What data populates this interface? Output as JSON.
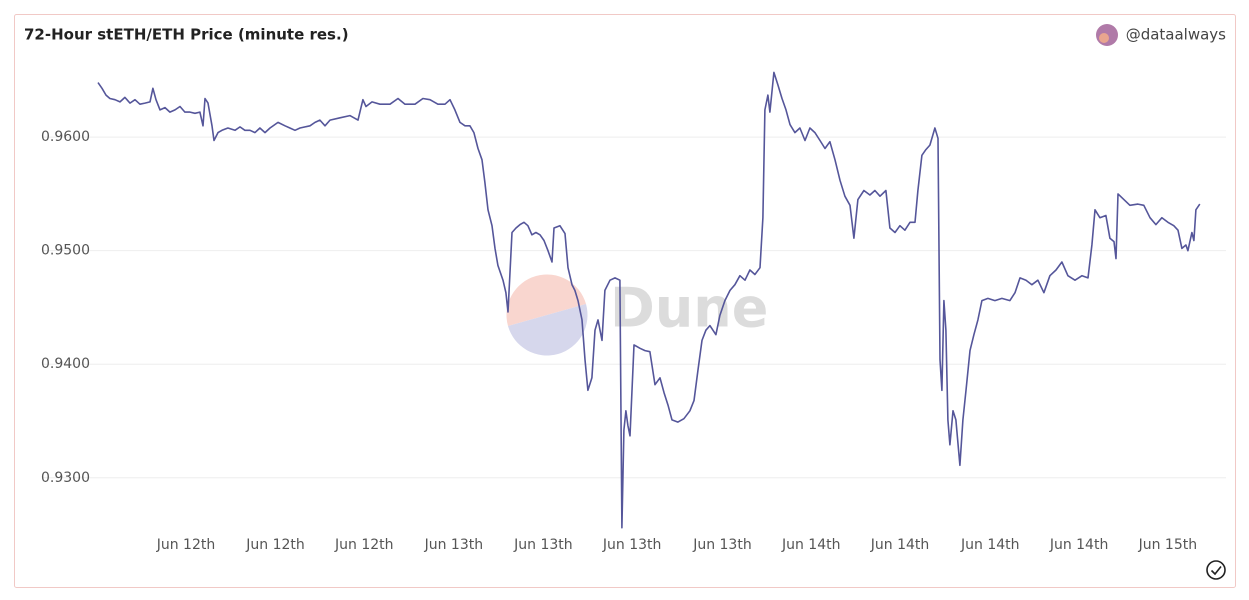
{
  "chart_data": {
    "type": "line",
    "title": "72-Hour stETH/ETH Price (minute res.)",
    "author": "@dataalways",
    "watermark": "Dune",
    "color": "#55569a",
    "grid": true,
    "xlim": [
      0,
      72
    ],
    "ylim": [
      0.9254,
      0.966
    ],
    "yticks": [
      {
        "value": 0.93,
        "label": "0.9300"
      },
      {
        "value": 0.94,
        "label": "0.9400"
      },
      {
        "value": 0.95,
        "label": "0.9500"
      },
      {
        "value": 0.96,
        "label": "0.9600"
      }
    ],
    "xticks": [
      {
        "value": 5.75,
        "label": "Jun 12th"
      },
      {
        "value": 11.6,
        "label": "Jun 12th"
      },
      {
        "value": 17.4,
        "label": "Jun 12th"
      },
      {
        "value": 23.25,
        "label": "Jun 13th"
      },
      {
        "value": 29.1,
        "label": "Jun 13th"
      },
      {
        "value": 34.9,
        "label": "Jun 13th"
      },
      {
        "value": 40.8,
        "label": "Jun 13th"
      },
      {
        "value": 46.6,
        "label": "Jun 14th"
      },
      {
        "value": 52.4,
        "label": "Jun 14th"
      },
      {
        "value": 58.3,
        "label": "Jun 14th"
      },
      {
        "value": 64.1,
        "label": "Jun 14th"
      },
      {
        "value": 69.9,
        "label": "Jun 15th"
      }
    ],
    "x": [
      0,
      0.26,
      0.52,
      0.78,
      1.11,
      1.44,
      1.76,
      2.09,
      2.42,
      2.74,
      3.07,
      3.4,
      3.59,
      3.79,
      4.05,
      4.38,
      4.7,
      5.03,
      5.36,
      5.68,
      6.01,
      6.34,
      6.66,
      6.86,
      6.99,
      7.19,
      7.45,
      7.58,
      7.84,
      8.1,
      8.49,
      8.95,
      9.28,
      9.6,
      9.93,
      10.26,
      10.58,
      10.91,
      11.24,
      11.76,
      12.22,
      12.54,
      12.87,
      13.2,
      13.85,
      14.18,
      14.5,
      14.83,
      15.16,
      15.81,
      16.46,
      16.99,
      17.31,
      17.51,
      17.9,
      18.42,
      19.08,
      19.6,
      20.06,
      20.71,
      21.23,
      21.69,
      22.21,
      22.67,
      23.0,
      23.32,
      23.65,
      23.98,
      24.3,
      24.56,
      24.83,
      25.09,
      25.28,
      25.48,
      25.74,
      25.94,
      26.13,
      26.46,
      26.65,
      26.79,
      27.05,
      27.31,
      27.57,
      27.83,
      28.09,
      28.35,
      28.61,
      28.88,
      29.14,
      29.4,
      29.66,
      29.79,
      30.18,
      30.51,
      30.71,
      30.97,
      31.16,
      31.36,
      31.62,
      31.82,
      32.01,
      32.27,
      32.47,
      32.67,
      32.93,
      33.12,
      33.45,
      33.78,
      34.1,
      34.23,
      34.36,
      34.49,
      34.62,
      34.76,
      35.02,
      35.41,
      35.74,
      36.06,
      36.39,
      36.72,
      36.98,
      37.24,
      37.5,
      37.89,
      38.28,
      38.67,
      38.94,
      39.2,
      39.46,
      39.72,
      39.98,
      40.37,
      40.63,
      40.96,
      41.29,
      41.61,
      41.94,
      42.27,
      42.59,
      42.92,
      43.25,
      43.44,
      43.57,
      43.77,
      43.9,
      44.16,
      44.42,
      44.69,
      44.95,
      45.21,
      45.53,
      45.86,
      46.19,
      46.51,
      46.84,
      47.17,
      47.5,
      47.82,
      48.15,
      48.48,
      48.8,
      49.13,
      49.39,
      49.65,
      50.04,
      50.43,
      50.76,
      51.09,
      51.48,
      51.74,
      52.07,
      52.39,
      52.72,
      53.05,
      53.38,
      53.57,
      53.83,
      54.09,
      54.35,
      54.68,
      54.88,
      55.01,
      55.14,
      55.27,
      55.4,
      55.53,
      55.66,
      55.86,
      56.05,
      56.31,
      56.51,
      56.71,
      56.97,
      57.23,
      57.49,
      57.75,
      58.14,
      58.6,
      59.06,
      59.58,
      59.91,
      60.24,
      60.63,
      61.02,
      61.41,
      61.8,
      62.19,
      62.59,
      62.98,
      63.37,
      63.83,
      64.29,
      64.68,
      64.94,
      65.14,
      65.46,
      65.85,
      66.11,
      66.38,
      66.51,
      66.64,
      67.03,
      67.42,
      67.94,
      68.33,
      68.73,
      69.12,
      69.51,
      69.9,
      70.29,
      70.56,
      70.82,
      71.08,
      71.21,
      71.47,
      71.6,
      71.73,
      71.99
    ],
    "values": [
      0.9648,
      0.9643,
      0.9637,
      0.9634,
      0.9633,
      0.9631,
      0.9635,
      0.963,
      0.9633,
      0.9629,
      0.963,
      0.9631,
      0.9643,
      0.9633,
      0.9624,
      0.9626,
      0.9622,
      0.9624,
      0.9627,
      0.9622,
      0.9622,
      0.9621,
      0.9622,
      0.961,
      0.9634,
      0.963,
      0.961,
      0.9597,
      0.9604,
      0.9606,
      0.9608,
      0.9606,
      0.9609,
      0.9606,
      0.9606,
      0.9604,
      0.9608,
      0.9604,
      0.9608,
      0.9613,
      0.961,
      0.9608,
      0.9606,
      0.9608,
      0.961,
      0.9613,
      0.9615,
      0.961,
      0.9615,
      0.9617,
      0.9619,
      0.9615,
      0.9633,
      0.9627,
      0.9631,
      0.9629,
      0.9629,
      0.9634,
      0.9629,
      0.9629,
      0.9634,
      0.9633,
      0.9629,
      0.9629,
      0.9633,
      0.9624,
      0.9613,
      0.961,
      0.961,
      0.9604,
      0.959,
      0.958,
      0.956,
      0.9536,
      0.9522,
      0.9502,
      0.9487,
      0.9474,
      0.9463,
      0.9446,
      0.9516,
      0.952,
      0.9523,
      0.9525,
      0.9522,
      0.9514,
      0.9516,
      0.9514,
      0.9509,
      0.95,
      0.949,
      0.952,
      0.9522,
      0.9515,
      0.9485,
      0.947,
      0.9465,
      0.9456,
      0.9439,
      0.9404,
      0.9377,
      0.9388,
      0.943,
      0.9439,
      0.9421,
      0.9465,
      0.9474,
      0.9476,
      0.9474,
      0.9256,
      0.9342,
      0.9359,
      0.9346,
      0.9337,
      0.9417,
      0.9414,
      0.9412,
      0.9411,
      0.9382,
      0.9388,
      0.9375,
      0.9364,
      0.9351,
      0.9349,
      0.9352,
      0.9359,
      0.9368,
      0.9395,
      0.9421,
      0.943,
      0.9434,
      0.9426,
      0.9443,
      0.9456,
      0.9465,
      0.947,
      0.9478,
      0.9474,
      0.9483,
      0.9479,
      0.9485,
      0.9529,
      0.9624,
      0.9637,
      0.9622,
      0.9657,
      0.9646,
      0.9634,
      0.9624,
      0.9611,
      0.9604,
      0.9608,
      0.9597,
      0.9608,
      0.9604,
      0.9597,
      0.959,
      0.9596,
      0.958,
      0.9562,
      0.9548,
      0.954,
      0.9511,
      0.9545,
      0.9553,
      0.9549,
      0.9553,
      0.9548,
      0.9553,
      0.952,
      0.9516,
      0.9522,
      0.9518,
      0.9525,
      0.9525,
      0.9553,
      0.9584,
      0.9589,
      0.9593,
      0.9608,
      0.9599,
      0.9404,
      0.9377,
      0.9456,
      0.943,
      0.9351,
      0.9329,
      0.9359,
      0.9351,
      0.9311,
      0.9351,
      0.9377,
      0.9412,
      0.9426,
      0.9439,
      0.9456,
      0.9458,
      0.9456,
      0.9458,
      0.9456,
      0.9463,
      0.9476,
      0.9474,
      0.947,
      0.9474,
      0.9463,
      0.9478,
      0.9483,
      0.949,
      0.9478,
      0.9474,
      0.9478,
      0.9476,
      0.9505,
      0.9536,
      0.9529,
      0.9531,
      0.9511,
      0.9508,
      0.9493,
      0.955,
      0.9545,
      0.954,
      0.9541,
      0.954,
      0.9529,
      0.9523,
      0.9529,
      0.9525,
      0.9522,
      0.9518,
      0.9502,
      0.9505,
      0.95,
      0.9516,
      0.9509,
      0.9536,
      0.9541
    ]
  }
}
